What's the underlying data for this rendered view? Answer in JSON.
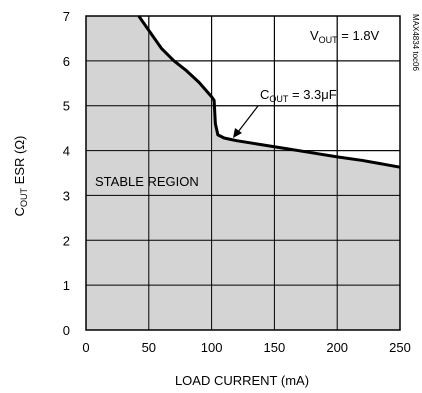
{
  "chart_data": {
    "type": "area",
    "title": "",
    "figure_id": "MAX4834 toc06",
    "xlabel": "LOAD CURRENT (mA)",
    "ylabel": {
      "main": "C",
      "sub": "OUT",
      "rest": " ESR (Ω)"
    },
    "xlim": [
      0,
      250
    ],
    "ylim": [
      0,
      7
    ],
    "xticks": [
      0,
      50,
      100,
      150,
      200,
      250
    ],
    "yticks": [
      0,
      1,
      2,
      3,
      4,
      5,
      6,
      7
    ],
    "grid": true,
    "fill_color": "#d4d4d4",
    "line_color": "#000000",
    "region_label": "STABLE REGION",
    "annotations": {
      "vout": {
        "main": "V",
        "sub": "OUT",
        "rest": " = 1.8V"
      },
      "cout": {
        "main": "C",
        "sub": "OUT",
        "rest": " = 3.3μF"
      }
    },
    "series": [
      {
        "x": [
          42,
          50,
          60,
          70,
          80,
          90,
          100,
          102,
          103,
          105,
          110,
          115,
          120,
          140,
          160,
          180,
          200,
          220,
          240,
          250
        ],
        "y": [
          7.0,
          6.68,
          6.28,
          6.0,
          5.78,
          5.52,
          5.2,
          5.12,
          4.6,
          4.35,
          4.28,
          4.25,
          4.22,
          4.13,
          4.04,
          3.95,
          3.86,
          3.78,
          3.68,
          3.63
        ]
      }
    ]
  }
}
